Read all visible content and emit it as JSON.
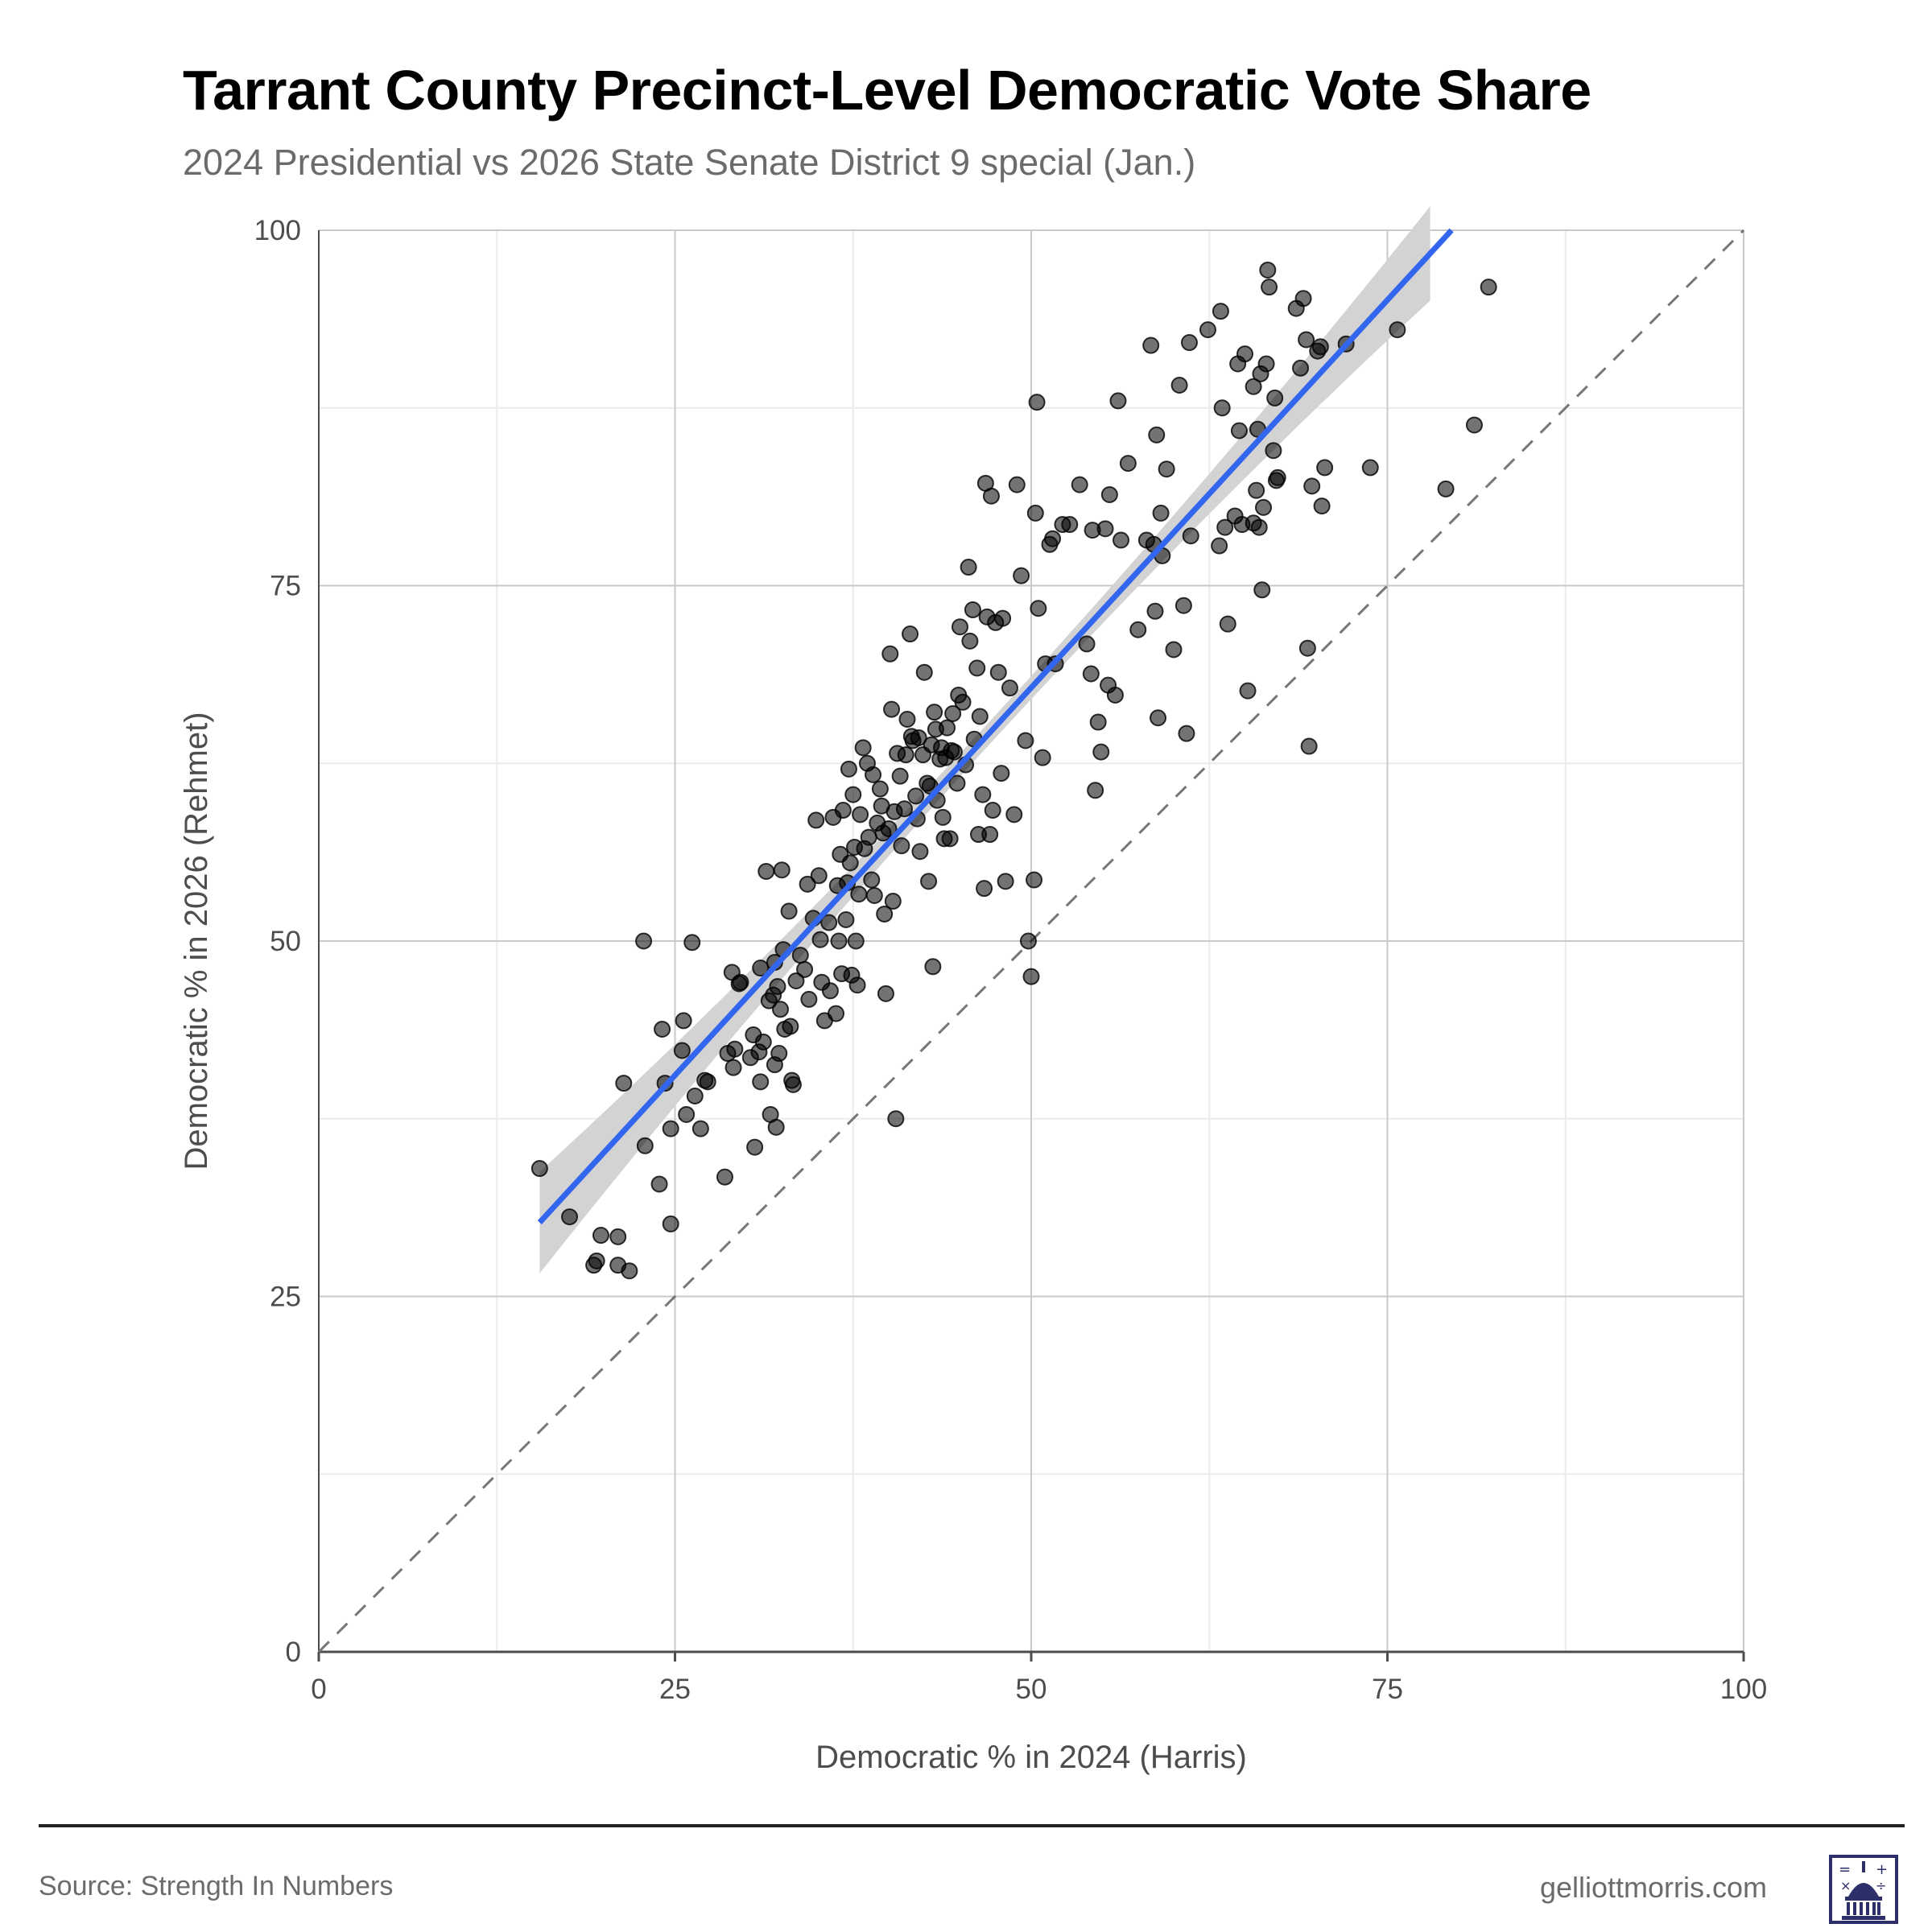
{
  "header": {
    "title": "Tarrant County Precinct-Level Democratic Vote Share",
    "subtitle": "2024 Presidential vs 2026 State Senate District 9 special (Jan.)"
  },
  "footer": {
    "source": "Source: Strength In Numbers",
    "site": "gelliottmorris.com",
    "logo_icon": "capitol-dome-logo-icon"
  },
  "colors": {
    "points": "#000000",
    "trend_line": "#3366ee",
    "confidence_band": "#d3d3d3",
    "reference_line": "#777777",
    "grid_major": "#c9c9c9",
    "grid_minor": "#ebebeb",
    "axis_text": "#4d4d4d"
  },
  "chart_data": {
    "type": "scatter",
    "title": "Tarrant County Precinct-Level Democratic Vote Share",
    "subtitle": "2024 Presidential vs 2026 State Senate District 9 special (Jan.)",
    "xlabel": "Democratic % in 2024 (Harris)",
    "ylabel": "Democratic % in 2026 (Rehmet)",
    "xlim": [
      0,
      100
    ],
    "ylim": [
      0,
      100
    ],
    "xticks": [
      0,
      25,
      50,
      75,
      100
    ],
    "yticks": [
      0,
      25,
      50,
      75,
      100
    ],
    "grid": true,
    "legend": "none",
    "reference_line": {
      "style": "dashed",
      "from": [
        0,
        0
      ],
      "to": [
        100,
        100
      ]
    },
    "trend_line": {
      "method": "linear fit with confidence band",
      "from": [
        15.5,
        30.2
      ],
      "to": [
        79.5,
        100
      ]
    },
    "points": [
      [
        15.5,
        34
      ],
      [
        17.6,
        30.6
      ],
      [
        19.3,
        27.2
      ],
      [
        19.5,
        27.5
      ],
      [
        19.8,
        29.3
      ],
      [
        21.0,
        29.2
      ],
      [
        21.0,
        27.2
      ],
      [
        21.8,
        26.8
      ],
      [
        21.4,
        40
      ],
      [
        22.8,
        50
      ],
      [
        22.9,
        35.6
      ],
      [
        23.9,
        32.9
      ],
      [
        24.1,
        43.8
      ],
      [
        24.3,
        40
      ],
      [
        24.7,
        36.8
      ],
      [
        24.7,
        30.1
      ],
      [
        25.5,
        42.3
      ],
      [
        25.6,
        44.4
      ],
      [
        25.8,
        37.8
      ],
      [
        26.2,
        49.9
      ],
      [
        26.4,
        39.1
      ],
      [
        26.8,
        36.8
      ],
      [
        27.1,
        40.2
      ],
      [
        27.3,
        40.1
      ],
      [
        28.5,
        33.4
      ],
      [
        28.7,
        42.1
      ],
      [
        29.0,
        47.8
      ],
      [
        29.1,
        41.1
      ],
      [
        29.2,
        42.4
      ],
      [
        29.5,
        47.0
      ],
      [
        29.6,
        47.1
      ],
      [
        30.3,
        41.8
      ],
      [
        30.5,
        43.4
      ],
      [
        30.6,
        35.5
      ],
      [
        30.9,
        42.2
      ],
      [
        31.0,
        40.1
      ],
      [
        31.0,
        48.1
      ],
      [
        31.2,
        42.9
      ],
      [
        31.4,
        54.9
      ],
      [
        31.6,
        45.8
      ],
      [
        31.7,
        37.8
      ],
      [
        31.9,
        46.2
      ],
      [
        32.0,
        41.3
      ],
      [
        32.0,
        48.5
      ],
      [
        32.1,
        36.9
      ],
      [
        32.2,
        46.8
      ],
      [
        32.3,
        42.1
      ],
      [
        32.4,
        45.2
      ],
      [
        32.5,
        55.0
      ],
      [
        32.6,
        49.4
      ],
      [
        32.7,
        43.8
      ],
      [
        33.0,
        52.1
      ],
      [
        33.1,
        44.0
      ],
      [
        33.2,
        40.2
      ],
      [
        33.3,
        39.9
      ],
      [
        33.5,
        47.2
      ],
      [
        33.8,
        49.0
      ],
      [
        34.1,
        48.0
      ],
      [
        34.3,
        54.0
      ],
      [
        34.4,
        45.9
      ],
      [
        34.7,
        51.6
      ],
      [
        34.9,
        58.5
      ],
      [
        35.1,
        54.6
      ],
      [
        35.2,
        50.1
      ],
      [
        35.3,
        47.1
      ],
      [
        35.5,
        44.4
      ],
      [
        35.8,
        51.3
      ],
      [
        35.9,
        46.5
      ],
      [
        36.1,
        58.7
      ],
      [
        36.3,
        44.9
      ],
      [
        36.4,
        53.9
      ],
      [
        36.5,
        50.0
      ],
      [
        36.6,
        56.1
      ],
      [
        36.7,
        47.7
      ],
      [
        36.8,
        59.2
      ],
      [
        37.0,
        51.5
      ],
      [
        37.1,
        54.1
      ],
      [
        37.2,
        62.1
      ],
      [
        37.3,
        55.5
      ],
      [
        37.4,
        47.6
      ],
      [
        37.5,
        60.3
      ],
      [
        37.6,
        56.6
      ],
      [
        37.7,
        50.0
      ],
      [
        37.8,
        46.9
      ],
      [
        37.9,
        53.3
      ],
      [
        38.0,
        58.9
      ],
      [
        38.2,
        63.6
      ],
      [
        38.3,
        56.5
      ],
      [
        38.5,
        62.5
      ],
      [
        38.6,
        57.3
      ],
      [
        38.8,
        54.3
      ],
      [
        38.9,
        61.7
      ],
      [
        39.0,
        53.2
      ],
      [
        39.2,
        58.3
      ],
      [
        39.4,
        60.7
      ],
      [
        39.5,
        59.5
      ],
      [
        39.6,
        57.6
      ],
      [
        39.7,
        51.9
      ],
      [
        39.8,
        46.3
      ],
      [
        40.0,
        57.9
      ],
      [
        40.1,
        70.2
      ],
      [
        40.2,
        66.3
      ],
      [
        40.3,
        52.8
      ],
      [
        40.4,
        59.1
      ],
      [
        40.5,
        37.5
      ],
      [
        40.6,
        63.2
      ],
      [
        40.8,
        61.6
      ],
      [
        40.9,
        56.7
      ],
      [
        41.1,
        59.3
      ],
      [
        41.2,
        63.1
      ],
      [
        41.3,
        65.6
      ],
      [
        41.5,
        71.6
      ],
      [
        41.6,
        64.4
      ],
      [
        41.7,
        64.1
      ],
      [
        41.9,
        60.2
      ],
      [
        42.0,
        58.6
      ],
      [
        42.1,
        64.3
      ],
      [
        42.2,
        56.3
      ],
      [
        42.4,
        63.1
      ],
      [
        42.5,
        68.9
      ],
      [
        42.7,
        61.1
      ],
      [
        42.8,
        54.2
      ],
      [
        42.9,
        60.9
      ],
      [
        43.0,
        63.8
      ],
      [
        43.1,
        48.2
      ],
      [
        43.2,
        66.1
      ],
      [
        43.3,
        64.9
      ],
      [
        43.4,
        59.9
      ],
      [
        43.6,
        62.8
      ],
      [
        43.7,
        63.6
      ],
      [
        43.8,
        58.7
      ],
      [
        43.9,
        57.2
      ],
      [
        44.0,
        62.9
      ],
      [
        44.1,
        65.0
      ],
      [
        44.3,
        57.2
      ],
      [
        44.4,
        63.4
      ],
      [
        44.5,
        66.0
      ],
      [
        44.6,
        63.3
      ],
      [
        44.8,
        61.1
      ],
      [
        44.9,
        67.3
      ],
      [
        45.0,
        72.1
      ],
      [
        45.2,
        66.8
      ],
      [
        45.4,
        62.4
      ],
      [
        45.6,
        76.3
      ],
      [
        45.7,
        71.1
      ],
      [
        45.9,
        73.3
      ],
      [
        46.0,
        64.2
      ],
      [
        46.2,
        69.2
      ],
      [
        46.3,
        57.5
      ],
      [
        46.4,
        65.8
      ],
      [
        46.6,
        60.3
      ],
      [
        46.7,
        53.7
      ],
      [
        46.8,
        82.2
      ],
      [
        46.9,
        72.8
      ],
      [
        47.1,
        57.5
      ],
      [
        47.2,
        81.3
      ],
      [
        47.3,
        59.2
      ],
      [
        47.5,
        72.4
      ],
      [
        47.7,
        68.9
      ],
      [
        47.9,
        61.8
      ],
      [
        48.0,
        72.7
      ],
      [
        48.2,
        54.2
      ],
      [
        48.5,
        67.8
      ],
      [
        48.8,
        58.9
      ],
      [
        49.0,
        82.1
      ],
      [
        49.3,
        75.7
      ],
      [
        49.6,
        64.1
      ],
      [
        49.8,
        50.0
      ],
      [
        50.0,
        47.5
      ],
      [
        50.2,
        54.3
      ],
      [
        50.3,
        80.1
      ],
      [
        50.4,
        87.9
      ],
      [
        50.5,
        73.4
      ],
      [
        50.8,
        62.9
      ],
      [
        51.0,
        69.5
      ],
      [
        51.3,
        77.9
      ],
      [
        51.5,
        78.3
      ],
      [
        51.7,
        69.5
      ],
      [
        52.2,
        79.3
      ],
      [
        52.7,
        79.3
      ],
      [
        53.4,
        82.1
      ],
      [
        53.9,
        70.9
      ],
      [
        54.2,
        68.8
      ],
      [
        54.3,
        78.9
      ],
      [
        54.5,
        60.6
      ],
      [
        54.7,
        65.4
      ],
      [
        54.9,
        63.3
      ],
      [
        55.2,
        79.0
      ],
      [
        55.4,
        68.0
      ],
      [
        55.5,
        81.4
      ],
      [
        55.9,
        67.3
      ],
      [
        56.1,
        88.0
      ],
      [
        56.3,
        78.2
      ],
      [
        56.8,
        83.6
      ],
      [
        57.5,
        71.9
      ],
      [
        58.1,
        78.2
      ],
      [
        58.4,
        91.9
      ],
      [
        58.6,
        77.9
      ],
      [
        58.7,
        73.2
      ],
      [
        58.8,
        85.6
      ],
      [
        58.9,
        65.7
      ],
      [
        59.1,
        80.1
      ],
      [
        59.2,
        77.1
      ],
      [
        59.5,
        83.2
      ],
      [
        60.0,
        70.5
      ],
      [
        60.4,
        89.1
      ],
      [
        60.7,
        73.6
      ],
      [
        60.9,
        64.6
      ],
      [
        61.1,
        92.1
      ],
      [
        61.2,
        78.5
      ],
      [
        62.4,
        93.0
      ],
      [
        63.2,
        77.8
      ],
      [
        63.3,
        94.3
      ],
      [
        63.4,
        87.5
      ],
      [
        63.6,
        79.1
      ],
      [
        63.8,
        72.3
      ],
      [
        64.3,
        79.9
      ],
      [
        64.5,
        90.6
      ],
      [
        64.6,
        85.9
      ],
      [
        64.8,
        79.3
      ],
      [
        65.0,
        91.3
      ],
      [
        65.2,
        67.6
      ],
      [
        65.6,
        79.4
      ],
      [
        65.6,
        89.0
      ],
      [
        65.8,
        81.7
      ],
      [
        65.9,
        86.0
      ],
      [
        66.0,
        79.1
      ],
      [
        66.1,
        89.9
      ],
      [
        66.2,
        74.7
      ],
      [
        66.3,
        80.5
      ],
      [
        66.5,
        90.6
      ],
      [
        66.6,
        97.2
      ],
      [
        66.7,
        96.0
      ],
      [
        67.0,
        84.5
      ],
      [
        67.1,
        88.2
      ],
      [
        67.2,
        82.4
      ],
      [
        67.3,
        82.6
      ],
      [
        68.6,
        94.5
      ],
      [
        68.9,
        90.3
      ],
      [
        69.1,
        95.2
      ],
      [
        69.3,
        92.3
      ],
      [
        69.4,
        70.6
      ],
      [
        69.5,
        63.7
      ],
      [
        69.7,
        82.0
      ],
      [
        70.1,
        91.5
      ],
      [
        70.3,
        91.8
      ],
      [
        70.4,
        80.6
      ],
      [
        70.6,
        83.3
      ],
      [
        72.1,
        92.0
      ],
      [
        73.8,
        83.3
      ],
      [
        75.7,
        93.0
      ],
      [
        79.1,
        81.8
      ],
      [
        81.1,
        86.3
      ],
      [
        82.1,
        96.0
      ]
    ]
  }
}
